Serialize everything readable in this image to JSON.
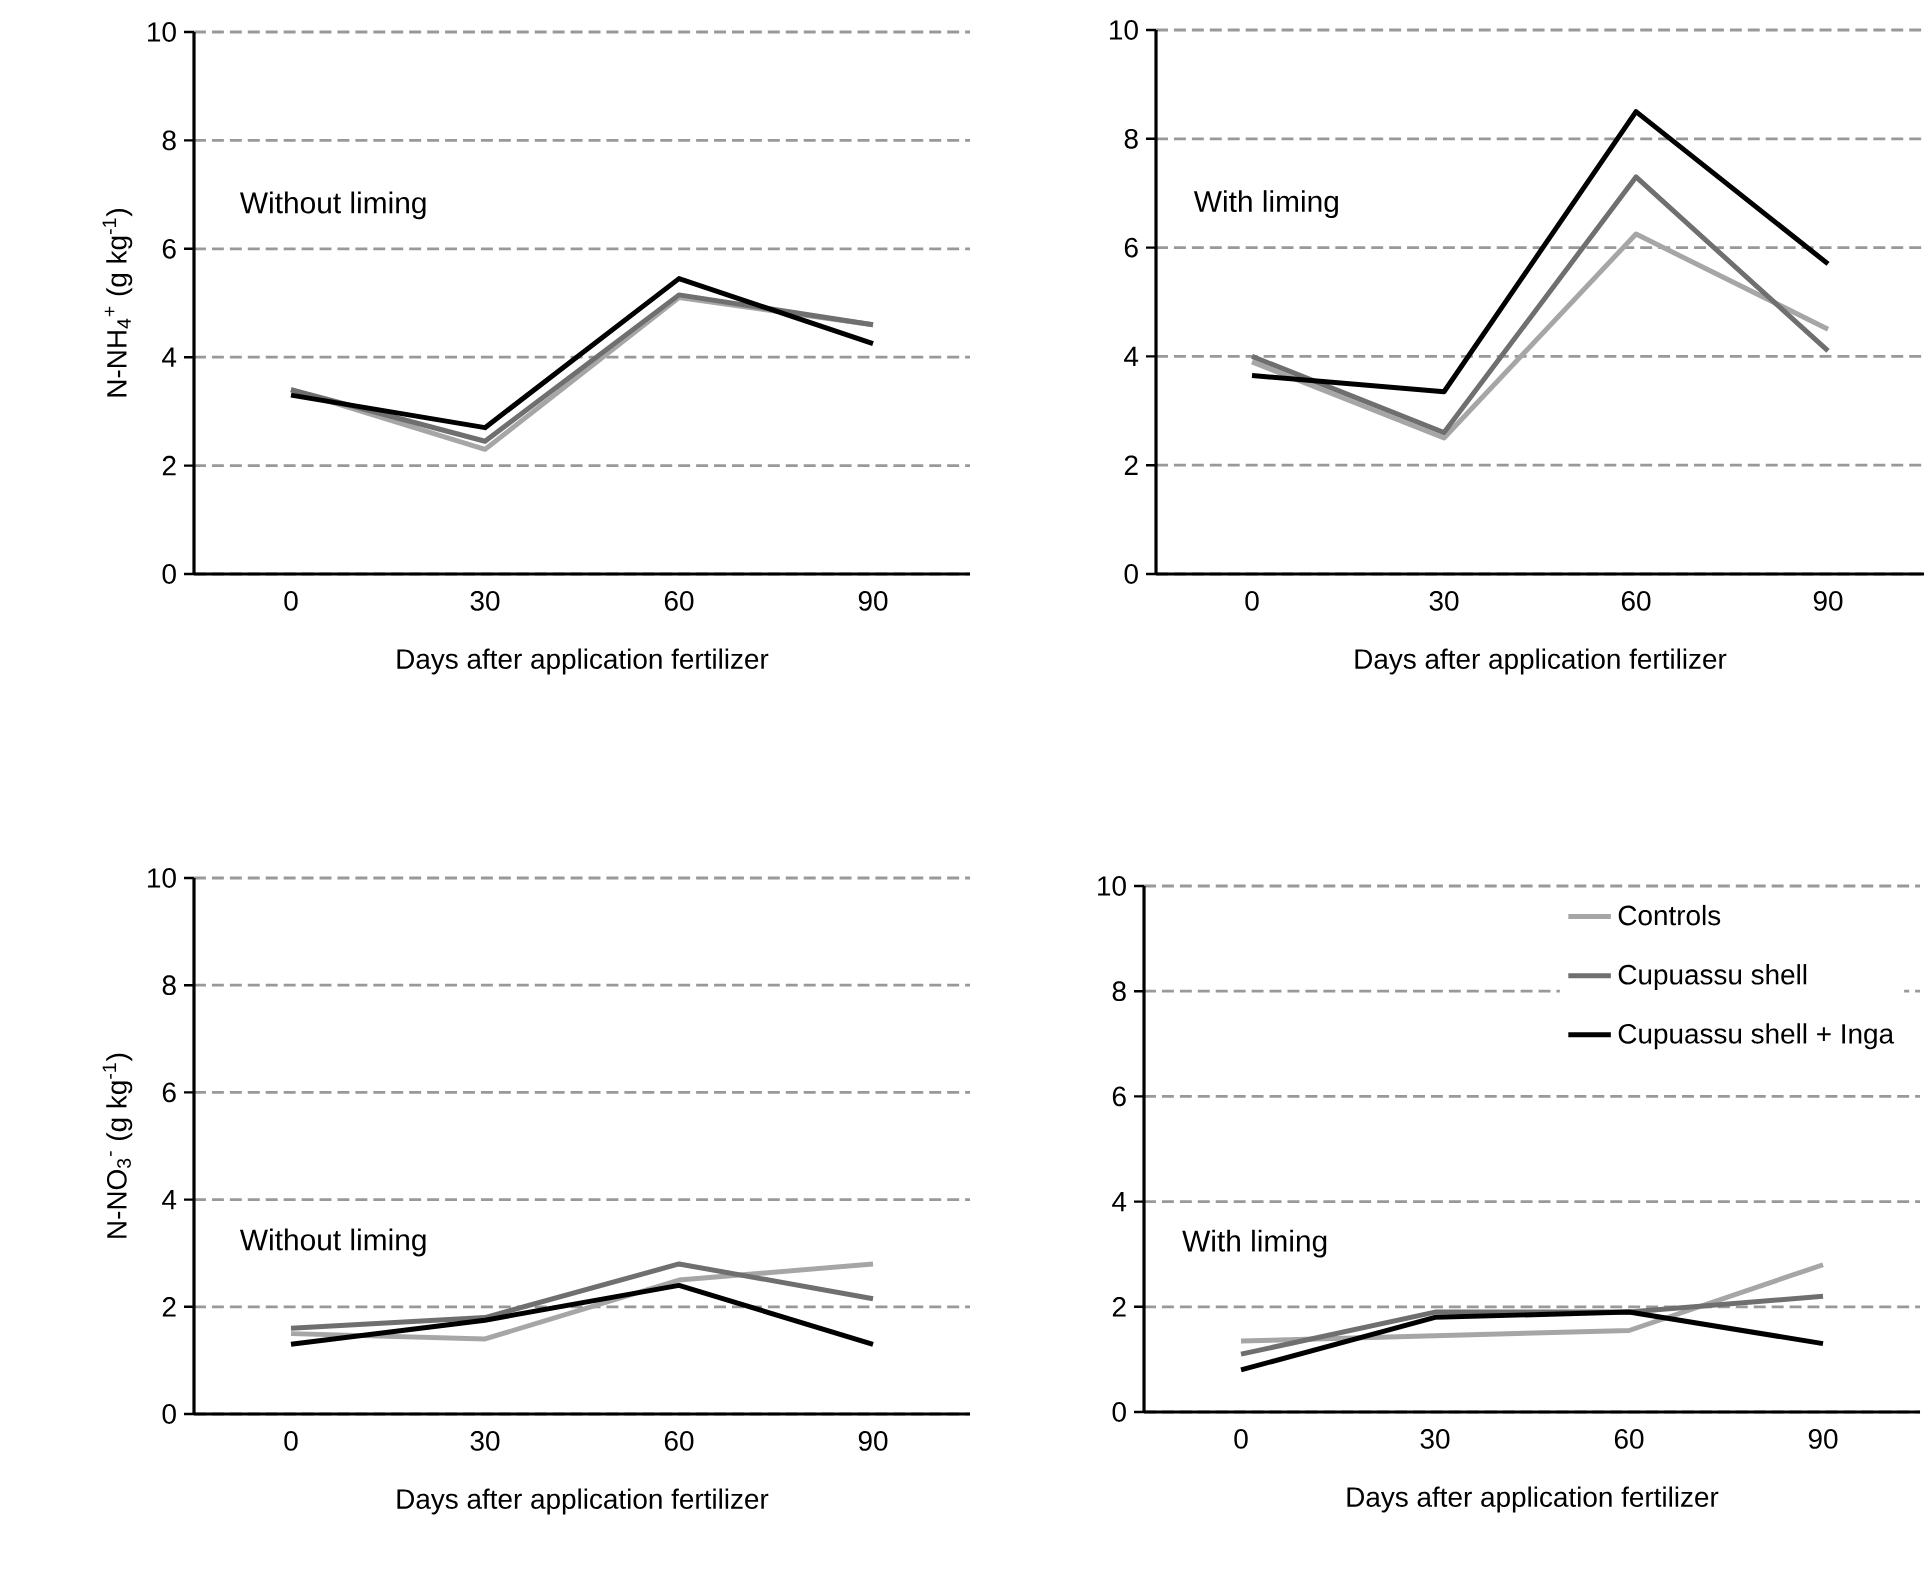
{
  "chart_data": [
    {
      "type": "line",
      "ylabel": "N-NH$_{4}$$^{+}$ (g kg$^{-1}$)",
      "xlabel": "Days after application fertilizer",
      "annotations": [
        "Without liming"
      ],
      "categories": [
        "0",
        "30",
        "60",
        "90"
      ],
      "ylim": [
        0,
        10
      ],
      "yticks": [
        0,
        2,
        4,
        6,
        8,
        10
      ],
      "grid": "y",
      "marker": "none",
      "line_style": "solid",
      "series": [
        {
          "color": "#a6a6a6",
          "values": [
            3.4,
            2.3,
            5.1,
            4.6
          ]
        },
        {
          "color": "#6f6f6f",
          "values": [
            3.4,
            2.45,
            5.15,
            4.6
          ]
        },
        {
          "color": "#000000",
          "values": [
            3.3,
            2.7,
            5.45,
            4.25
          ]
        }
      ]
    },
    {
      "type": "line",
      "xlabel": "Days after application fertilizer",
      "annotations": [
        "With liming"
      ],
      "categories": [
        "0",
        "30",
        "60",
        "90"
      ],
      "ylim": [
        0,
        10
      ],
      "yticks": [
        0,
        2,
        4,
        6,
        8,
        10
      ],
      "grid": "y",
      "marker": "none",
      "line_style": "solid",
      "series": [
        {
          "color": "#a6a6a6",
          "values": [
            3.9,
            2.5,
            6.25,
            4.5
          ]
        },
        {
          "color": "#6f6f6f",
          "values": [
            4.0,
            2.6,
            7.3,
            4.1
          ]
        },
        {
          "color": "#000000",
          "values": [
            3.65,
            3.35,
            8.5,
            5.7
          ]
        }
      ]
    },
    {
      "type": "line",
      "ylabel": "N-NO$_{3}$$^{-}$ (g kg$^{-1}$)",
      "xlabel": "Days after application fertilizer",
      "annotations": [
        "Without liming"
      ],
      "categories": [
        "0",
        "30",
        "60",
        "90"
      ],
      "ylim": [
        0,
        10
      ],
      "yticks": [
        0,
        2,
        4,
        6,
        8,
        10
      ],
      "grid": "y",
      "marker": "none",
      "line_style": "solid",
      "series": [
        {
          "color": "#a6a6a6",
          "values": [
            1.5,
            1.4,
            2.5,
            2.8
          ]
        },
        {
          "color": "#6f6f6f",
          "values": [
            1.6,
            1.8,
            2.8,
            2.15
          ]
        },
        {
          "color": "#000000",
          "values": [
            1.3,
            1.75,
            2.4,
            1.3
          ]
        }
      ]
    },
    {
      "type": "line",
      "xlabel": "Days after application fertilizer",
      "annotations": [
        "With liming"
      ],
      "categories": [
        "0",
        "30",
        "60",
        "90"
      ],
      "ylim": [
        0,
        10
      ],
      "yticks": [
        0,
        2,
        4,
        6,
        8,
        10
      ],
      "grid": "y",
      "marker": "none",
      "line_style": "solid",
      "legend": "top right",
      "series": [
        {
          "name": "Controls",
          "color": "#a6a6a6",
          "values": [
            1.35,
            1.45,
            1.55,
            2.8
          ]
        },
        {
          "name": "Cupuassu shell",
          "color": "#6f6f6f",
          "values": [
            1.1,
            1.9,
            1.9,
            2.2
          ]
        },
        {
          "name": "Cupuassu shell  + Inga",
          "color": "#000000",
          "values": [
            0.8,
            1.8,
            1.9,
            1.3
          ]
        }
      ]
    }
  ]
}
